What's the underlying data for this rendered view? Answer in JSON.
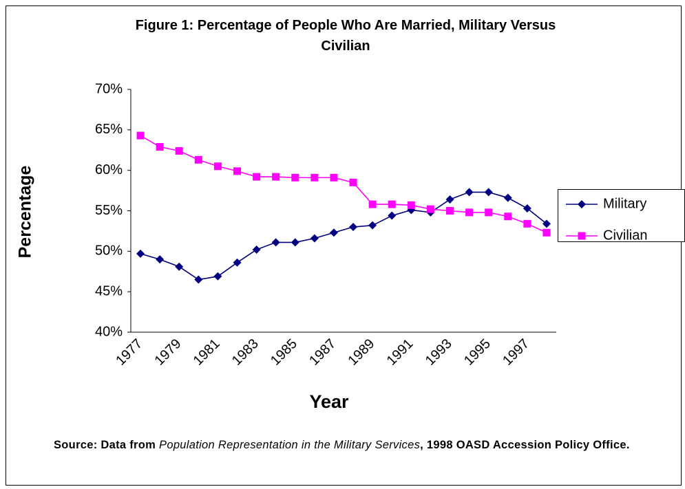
{
  "chart_data": {
    "type": "line",
    "title": "Figure 1: Percentage of People Who Are Married, Military Versus Civilian",
    "x_label": "Year",
    "y_label": "Percentage",
    "categories": [
      "1977",
      null,
      "1979",
      null,
      "1981",
      null,
      "1983",
      null,
      "1985",
      null,
      "1987",
      null,
      "1989",
      null,
      "1991",
      null,
      "1993",
      null,
      "1995",
      null,
      "1997",
      null
    ],
    "series": [
      {
        "name": "Military",
        "color": "#000080",
        "marker": "diamond",
        "values": [
          49.7,
          49.0,
          48.1,
          46.5,
          46.9,
          48.6,
          50.2,
          51.1,
          51.1,
          51.6,
          52.3,
          53.0,
          53.2,
          54.4,
          55.1,
          54.8,
          56.4,
          57.3,
          57.3,
          56.6,
          55.3,
          53.4
        ]
      },
      {
        "name": "Civilian",
        "color": "#ff00ff",
        "marker": "square",
        "values": [
          64.3,
          62.9,
          62.4,
          61.3,
          60.5,
          59.9,
          59.2,
          59.2,
          59.1,
          59.1,
          59.1,
          58.5,
          55.8,
          55.8,
          55.7,
          55.2,
          55.0,
          54.8,
          54.8,
          54.3,
          53.4,
          52.3
        ]
      }
    ],
    "ylim": [
      40,
      70
    ],
    "yticks": [
      {
        "value": 40,
        "label": "40%"
      },
      {
        "value": 45,
        "label": "45%"
      },
      {
        "value": 50,
        "label": "50%"
      },
      {
        "value": 55,
        "label": "55%"
      },
      {
        "value": 60,
        "label": "60%"
      },
      {
        "value": 65,
        "label": "65%"
      },
      {
        "value": 70,
        "label": "70%"
      }
    ],
    "grid": false,
    "legend": "right",
    "source": {
      "lead": "Source: Data from",
      "work": "Population Representation in the Military Services",
      "rest": ", 1998 OASD Accession Policy Office."
    }
  }
}
